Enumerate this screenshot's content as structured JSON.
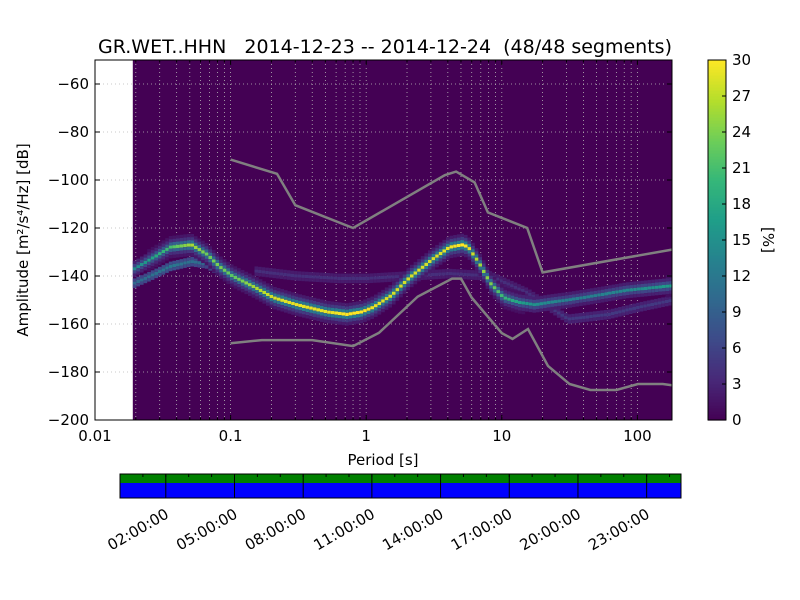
{
  "chart_data": {
    "type": "heatmap",
    "title": "GR.WET..HHN   2014-12-23 -- 2014-12-24  (48/48 segments)",
    "xlabel": "Period [s]",
    "ylabel": "Amplitude [m²/s⁴/Hz] [dB]",
    "x_scale": "log",
    "xlim": [
      0.01,
      180
    ],
    "ylim": [
      -200,
      -50
    ],
    "x_ticks": [
      0.01,
      0.1,
      1,
      10,
      100
    ],
    "x_tick_labels": [
      "0.01",
      "0.1",
      "1",
      "10",
      "100"
    ],
    "y_ticks": [
      -60,
      -80,
      -100,
      -120,
      -140,
      -160,
      -180,
      -200
    ],
    "y_tick_labels": [
      "−60",
      "−80",
      "−100",
      "−120",
      "−140",
      "−160",
      "−180",
      "−200"
    ],
    "data_x_min": 0.019,
    "colorbar": {
      "label": "[%]",
      "min": 0,
      "max": 30,
      "ticks": [
        0,
        3,
        6,
        9,
        12,
        15,
        18,
        21,
        24,
        27,
        30
      ],
      "tick_labels": [
        "0",
        "3",
        "6",
        "9",
        "12",
        "15",
        "18",
        "21",
        "24",
        "27",
        "30"
      ],
      "colormap": [
        "#440154",
        "#482878",
        "#3e4a89",
        "#31688e",
        "#26828e",
        "#1f9e89",
        "#35b779",
        "#6ece58",
        "#b5de2b",
        "#fde725"
      ]
    },
    "background_color": "#440154",
    "psd_mode": {
      "name": "main-mode",
      "x": [
        0.019,
        0.025,
        0.035,
        0.05,
        0.065,
        0.08,
        0.1,
        0.15,
        0.2,
        0.3,
        0.5,
        0.7,
        0.9,
        1.1,
        1.5,
        2,
        3,
        4,
        5,
        5.5,
        6.5,
        8,
        10,
        13,
        17,
        22,
        30,
        50,
        80,
        120,
        180
      ],
      "y": [
        -137,
        -133,
        -128,
        -127,
        -131,
        -136,
        -140,
        -145,
        -149,
        -152,
        -155,
        -156,
        -155,
        -153,
        -148,
        -141,
        -133,
        -128,
        -127,
        -128,
        -134,
        -143,
        -149,
        -151,
        -152,
        -151,
        -150,
        -148,
        -146,
        -145,
        -144
      ],
      "percent": [
        14,
        17,
        21,
        26,
        23,
        24,
        22,
        26,
        28,
        29,
        29,
        30,
        30,
        29,
        28,
        28,
        28,
        29,
        30,
        29,
        26,
        24,
        20,
        17,
        15,
        14,
        13,
        13,
        14,
        15,
        17
      ]
    },
    "psd_secondary": {
      "name": "secondary-mode",
      "x": [
        0.019,
        0.025,
        0.035,
        0.05,
        0.065,
        0.08
      ],
      "y": [
        -143,
        -140,
        -136,
        -134,
        -135,
        -138
      ],
      "percent": [
        10,
        11,
        12,
        11,
        10,
        9
      ]
    },
    "psd_faint": {
      "name": "faint-band",
      "x": [
        0.15,
        0.3,
        0.6,
        1,
        2,
        4,
        8,
        15,
        30,
        60,
        100,
        180
      ],
      "y": [
        -138,
        -140,
        -141,
        -141,
        -140,
        -139,
        -140,
        -147,
        -158,
        -156,
        -153,
        -150
      ],
      "percent": [
        4,
        4,
        4,
        4,
        4,
        4,
        4,
        4,
        5,
        5,
        5,
        5
      ]
    },
    "nhnm": {
      "name": "noise-model-high",
      "x": [
        0.1,
        0.22,
        0.3,
        0.8,
        3.8,
        4.6,
        6.3,
        7.9,
        15.4,
        20,
        180
      ],
      "y": [
        -91.5,
        -97.4,
        -110.5,
        -120,
        -98,
        -96.5,
        -101,
        -113.5,
        -120,
        -138.5,
        -129
      ]
    },
    "nlnm": {
      "name": "noise-model-low",
      "x": [
        0.1,
        0.17,
        0.4,
        0.8,
        1.24,
        2.4,
        4.3,
        5,
        6,
        10,
        12,
        15.6,
        21.9,
        31.6,
        45,
        70,
        101,
        154,
        180
      ],
      "y": [
        -168,
        -166.7,
        -166.7,
        -169.2,
        -163.7,
        -148.6,
        -141.1,
        -141.1,
        -149,
        -163.8,
        -166.2,
        -162.1,
        -177.5,
        -185,
        -187.5,
        -187.5,
        -185,
        -185,
        -185.5
      ]
    },
    "timeline": {
      "name": "segment-timeline",
      "tick_labels": [
        "02:00:00",
        "05:00:00",
        "08:00:00",
        "11:00:00",
        "14:00:00",
        "17:00:00",
        "20:00:00",
        "23:00:00"
      ],
      "tick_hours": [
        2,
        5,
        8,
        11,
        14,
        17,
        20,
        23
      ],
      "range_hours": [
        0,
        24.5
      ],
      "used_color": "#008000",
      "data_color": "#0000ff"
    }
  }
}
